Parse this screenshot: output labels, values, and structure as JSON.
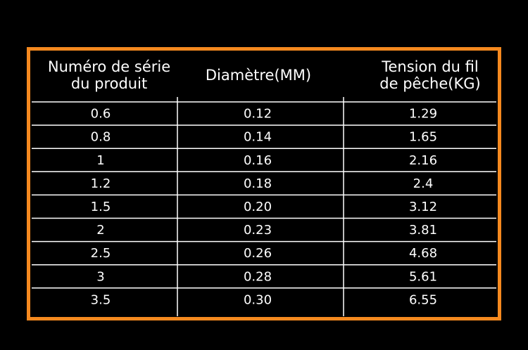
{
  "table": {
    "header": [
      [
        "Numéro de série",
        "du produit"
      ],
      [
        "Diamètre(MM)"
      ],
      [
        "Tension du fil",
        "de pêche(KG)"
      ]
    ],
    "rows": [
      [
        "0.6",
        "0.12",
        "1.29"
      ],
      [
        "0.8",
        "0.14",
        "1.65"
      ],
      [
        "1",
        "0.16",
        "2.16"
      ],
      [
        "1.2",
        "0.18",
        "2.4"
      ],
      [
        "1.5",
        "0.20",
        "3.12"
      ],
      [
        "2",
        "0.23",
        "3.81"
      ],
      [
        "2.5",
        "0.26",
        "4.68"
      ],
      [
        "3",
        "0.28",
        "5.61"
      ],
      [
        "3.5",
        "0.30",
        "6.55"
      ]
    ]
  }
}
